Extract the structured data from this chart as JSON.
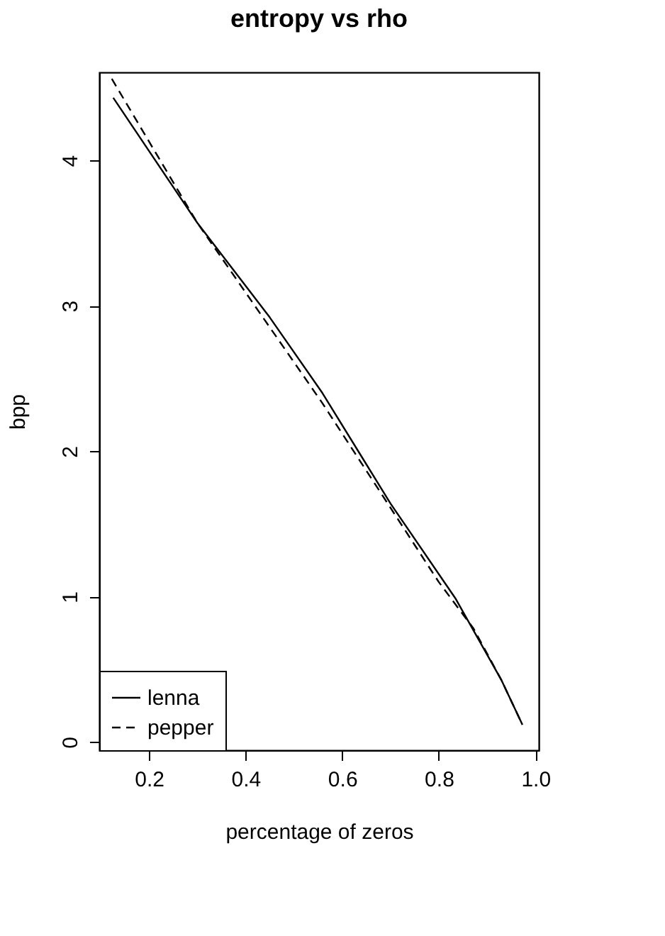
{
  "chart_data": {
    "type": "line",
    "title": "entropy vs rho",
    "xlabel": "percentage of zeros",
    "ylabel": "bpp",
    "xlim": [
      0.097,
      1.007
    ],
    "ylim": [
      -0.056,
      4.605
    ],
    "xticks": [
      0.2,
      0.4,
      0.6,
      0.8,
      {
        "value": 1.0,
        "label": "1.0"
      }
    ],
    "yticks": [
      0,
      1,
      2,
      3,
      4
    ],
    "grid": false,
    "legend": "bottom left",
    "marker": "none",
    "series": [
      {
        "name": "lenna",
        "color": "#000000",
        "line_style": "solid",
        "x": [
          0.126,
          0.3,
          0.45,
          0.559,
          0.7,
          0.834,
          0.929,
          0.973
        ],
        "values": [
          4.43,
          3.57,
          2.92,
          2.4,
          1.64,
          0.99,
          0.43,
          0.12
        ]
      },
      {
        "name": "pepper",
        "color": "#000000",
        "line_style": "dashed",
        "x": [
          0.123,
          0.3,
          0.559,
          0.8,
          0.872,
          0.929,
          0.973
        ],
        "values": [
          4.56,
          3.57,
          2.33,
          1.1,
          0.78,
          0.43,
          0.12
        ]
      }
    ]
  }
}
